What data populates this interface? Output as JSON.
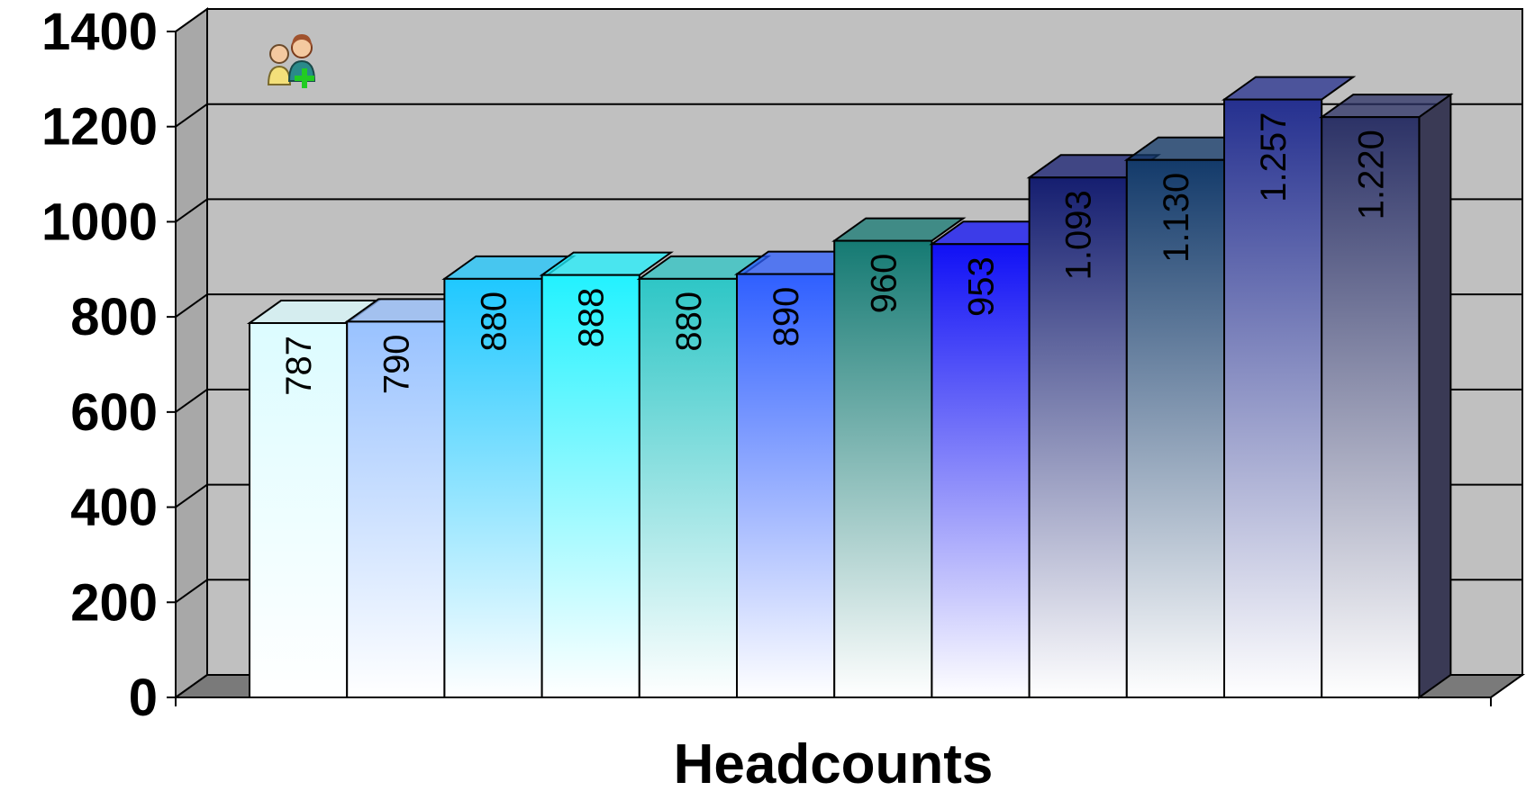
{
  "chart_data": {
    "type": "bar",
    "title": "",
    "xlabel": "Headcounts",
    "ylabel": "",
    "ylim": [
      0,
      1400
    ],
    "yticks": [
      0,
      200,
      400,
      600,
      800,
      1000,
      1200,
      1400
    ],
    "grid": true,
    "three_d": true,
    "values": [
      787,
      790,
      880,
      888,
      880,
      890,
      960,
      953,
      1093,
      1130,
      1257,
      1220
    ],
    "data_labels": [
      "787",
      "790",
      "880",
      "888",
      "880",
      "890",
      "960",
      "953",
      "1.093",
      "1.130",
      "1.257",
      "1.220"
    ],
    "bar_colors": [
      "#dcfcff",
      "#99c2ff",
      "#1fc8ff",
      "#22f2ff",
      "#2ec6c6",
      "#2f5fff",
      "#157a73",
      "#1010f5",
      "#151e70",
      "#133a6a",
      "#25308f",
      "#2c3266"
    ],
    "icon": "people-add-icon"
  }
}
